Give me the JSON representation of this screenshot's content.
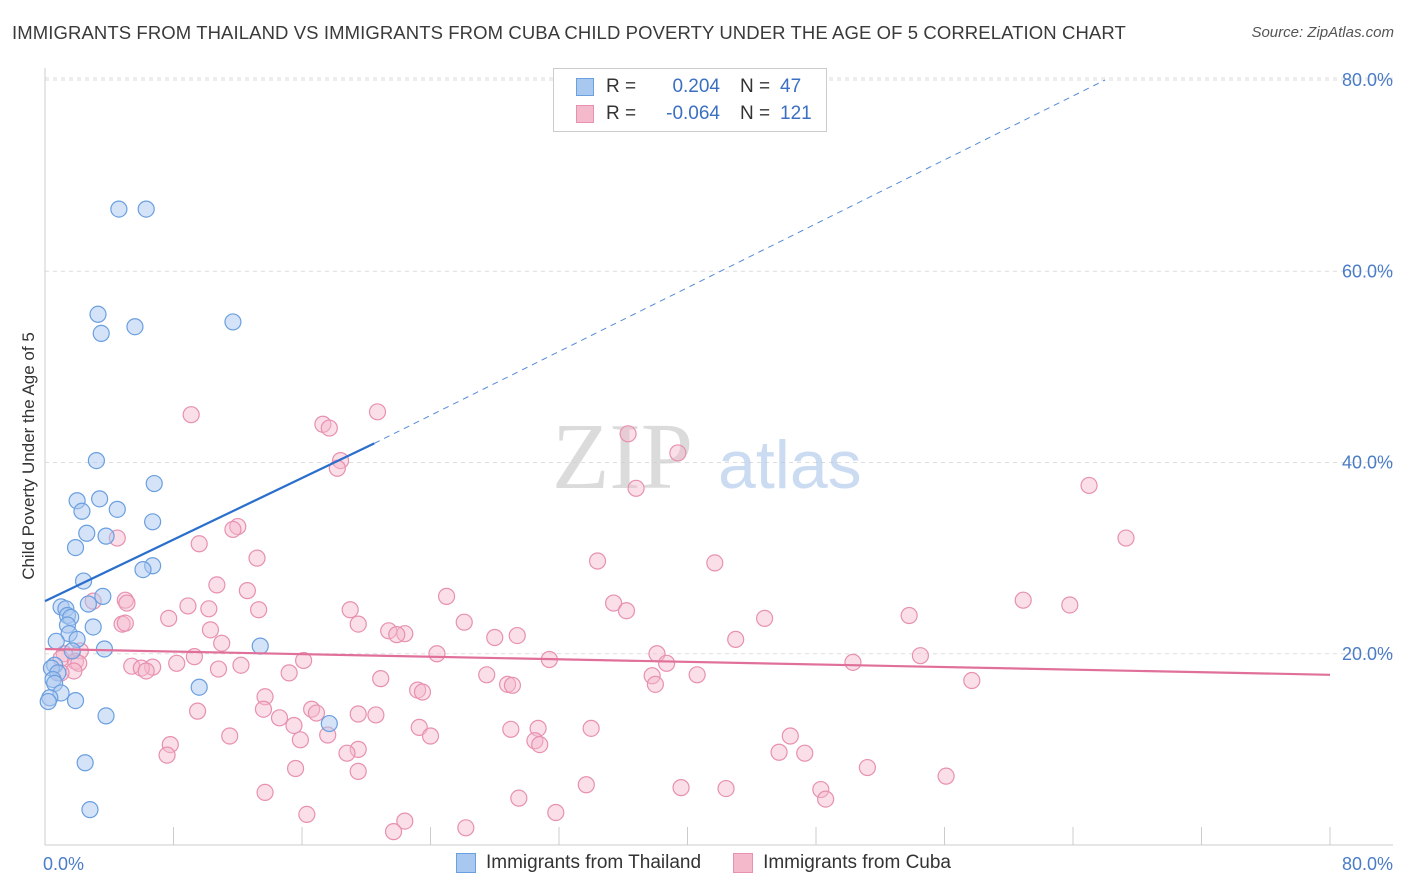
{
  "title": "IMMIGRANTS FROM THAILAND VS IMMIGRANTS FROM CUBA CHILD POVERTY UNDER THE AGE OF 5 CORRELATION CHART",
  "source": "Source: ZipAtlas.com",
  "watermark": {
    "zip": "ZIP",
    "atlas": "atlas"
  },
  "legend": {
    "rows": [
      {
        "r_label": "R =",
        "r_value": "0.204",
        "n_label": "N =",
        "n_value": "47"
      },
      {
        "r_label": "R =",
        "r_value": "-0.064",
        "n_label": "N =",
        "n_value": "121"
      }
    ]
  },
  "bottom_legend": {
    "thailand": "Immigrants from Thailand",
    "cuba": "Immigrants from Cuba"
  },
  "colors": {
    "thailand_fill": "#a9c8f0",
    "thailand_stroke": "#6a9fe0",
    "thailand_line": "#2a6fcc",
    "cuba_fill": "#f5b9cc",
    "cuba_stroke": "#e890b0",
    "cuba_line": "#e0709a",
    "tick": "#4a7cc7",
    "grid": "#dddddd"
  },
  "chart_data": {
    "type": "scatter",
    "ylabel": "Child Poverty Under the Age of 5",
    "xlim": [
      0,
      80
    ],
    "ylim": [
      0,
      80
    ],
    "x_tick_labels": [
      "0.0%",
      "80.0%"
    ],
    "y_ticks": [
      20,
      40,
      60,
      80
    ],
    "y_tick_labels": [
      "20.0%",
      "40.0%",
      "60.0%",
      "80.0%"
    ],
    "grid": "horizontal dashed",
    "series": [
      {
        "name": "Immigrants from Thailand",
        "R": 0.204,
        "N": 47,
        "trend": {
          "x0": 0,
          "y0": 25.5,
          "x1": 20.5,
          "y1": 42.0,
          "dash_to_x": 66,
          "dash_to_y": 80
        },
        "points": [
          [
            4.6,
            66.5
          ],
          [
            6.3,
            66.5
          ],
          [
            3.3,
            55.5
          ],
          [
            5.6,
            54.2
          ],
          [
            11.7,
            54.7
          ],
          [
            3.5,
            53.5
          ],
          [
            3.2,
            40.2
          ],
          [
            6.8,
            37.8
          ],
          [
            2.0,
            36.0
          ],
          [
            3.4,
            36.2
          ],
          [
            4.5,
            35.1
          ],
          [
            2.3,
            34.9
          ],
          [
            6.7,
            33.8
          ],
          [
            2.6,
            32.6
          ],
          [
            3.8,
            32.3
          ],
          [
            1.9,
            31.1
          ],
          [
            6.7,
            29.2
          ],
          [
            6.1,
            28.8
          ],
          [
            2.4,
            27.6
          ],
          [
            3.6,
            26.0
          ],
          [
            2.7,
            25.2
          ],
          [
            1.0,
            24.9
          ],
          [
            1.3,
            24.7
          ],
          [
            1.4,
            24.0
          ],
          [
            1.6,
            23.8
          ],
          [
            1.4,
            23.0
          ],
          [
            3.0,
            22.8
          ],
          [
            1.5,
            22.1
          ],
          [
            2.0,
            21.5
          ],
          [
            0.7,
            21.3
          ],
          [
            13.4,
            20.8
          ],
          [
            3.7,
            20.5
          ],
          [
            1.7,
            20.3
          ],
          [
            0.6,
            18.8
          ],
          [
            0.4,
            18.5
          ],
          [
            0.8,
            18.0
          ],
          [
            0.5,
            17.3
          ],
          [
            0.6,
            16.9
          ],
          [
            9.6,
            16.5
          ],
          [
            1.0,
            15.9
          ],
          [
            0.3,
            15.4
          ],
          [
            0.2,
            15.0
          ],
          [
            1.9,
            15.1
          ],
          [
            3.8,
            13.5
          ],
          [
            17.7,
            12.7
          ],
          [
            2.5,
            8.6
          ],
          [
            2.8,
            3.7
          ]
        ]
      },
      {
        "name": "Immigrants from Cuba",
        "R": -0.064,
        "N": 121,
        "trend": {
          "x0": 0,
          "y0": 20.5,
          "x1": 80,
          "y1": 17.8
        },
        "points": [
          [
            20.7,
            45.3
          ],
          [
            9.1,
            45.0
          ],
          [
            17.3,
            44.0
          ],
          [
            17.7,
            43.6
          ],
          [
            36.3,
            43.0
          ],
          [
            39.4,
            41.0
          ],
          [
            18.4,
            40.2
          ],
          [
            18.2,
            39.4
          ],
          [
            36.8,
            37.3
          ],
          [
            65.0,
            37.6
          ],
          [
            12.0,
            33.3
          ],
          [
            11.7,
            33.0
          ],
          [
            4.5,
            32.1
          ],
          [
            67.3,
            32.1
          ],
          [
            9.6,
            31.5
          ],
          [
            13.2,
            30.0
          ],
          [
            34.4,
            29.7
          ],
          [
            41.7,
            29.5
          ],
          [
            10.7,
            27.2
          ],
          [
            12.6,
            26.6
          ],
          [
            25.0,
            26.0
          ],
          [
            60.9,
            25.6
          ],
          [
            5.0,
            25.6
          ],
          [
            3.0,
            25.5
          ],
          [
            5.1,
            25.3
          ],
          [
            35.4,
            25.3
          ],
          [
            63.8,
            25.1
          ],
          [
            8.9,
            25.0
          ],
          [
            10.2,
            24.7
          ],
          [
            13.3,
            24.6
          ],
          [
            19.0,
            24.6
          ],
          [
            36.2,
            24.5
          ],
          [
            53.8,
            24.0
          ],
          [
            7.7,
            23.7
          ],
          [
            44.8,
            23.7
          ],
          [
            26.1,
            23.3
          ],
          [
            4.8,
            23.1
          ],
          [
            5.0,
            23.2
          ],
          [
            19.5,
            23.1
          ],
          [
            10.3,
            22.5
          ],
          [
            21.4,
            22.4
          ],
          [
            22.4,
            22.1
          ],
          [
            21.9,
            22.0
          ],
          [
            29.4,
            21.9
          ],
          [
            28.0,
            21.7
          ],
          [
            43.0,
            21.5
          ],
          [
            11.0,
            21.1
          ],
          [
            2.2,
            20.3
          ],
          [
            24.4,
            20.0
          ],
          [
            1.2,
            20.0
          ],
          [
            38.1,
            20.0
          ],
          [
            54.5,
            19.8
          ],
          [
            9.3,
            19.7
          ],
          [
            1.0,
            19.5
          ],
          [
            31.4,
            19.4
          ],
          [
            1.9,
            19.2
          ],
          [
            16.1,
            19.3
          ],
          [
            2.1,
            19.0
          ],
          [
            38.7,
            19.0
          ],
          [
            50.3,
            19.1
          ],
          [
            8.2,
            19.0
          ],
          [
            12.2,
            18.8
          ],
          [
            5.4,
            18.7
          ],
          [
            6.7,
            18.6
          ],
          [
            6.0,
            18.5
          ],
          [
            10.8,
            18.4
          ],
          [
            6.3,
            18.2
          ],
          [
            1.8,
            18.2
          ],
          [
            1.0,
            18.0
          ],
          [
            15.2,
            18.0
          ],
          [
            27.5,
            17.8
          ],
          [
            40.6,
            17.8
          ],
          [
            37.8,
            17.7
          ],
          [
            20.9,
            17.4
          ],
          [
            57.7,
            17.2
          ],
          [
            28.8,
            16.8
          ],
          [
            38.0,
            16.8
          ],
          [
            29.1,
            16.7
          ],
          [
            23.2,
            16.2
          ],
          [
            23.5,
            16.0
          ],
          [
            13.7,
            15.5
          ],
          [
            16.6,
            14.2
          ],
          [
            13.6,
            14.2
          ],
          [
            9.5,
            14.0
          ],
          [
            16.9,
            13.8
          ],
          [
            19.5,
            13.7
          ],
          [
            20.6,
            13.6
          ],
          [
            14.6,
            13.3
          ],
          [
            23.3,
            12.3
          ],
          [
            34.0,
            12.2
          ],
          [
            15.5,
            12.5
          ],
          [
            29.0,
            12.1
          ],
          [
            30.7,
            12.2
          ],
          [
            11.5,
            11.4
          ],
          [
            17.6,
            11.5
          ],
          [
            24.0,
            11.4
          ],
          [
            46.4,
            11.4
          ],
          [
            15.9,
            11.0
          ],
          [
            30.5,
            10.9
          ],
          [
            30.8,
            10.5
          ],
          [
            7.8,
            10.5
          ],
          [
            19.5,
            10.0
          ],
          [
            18.8,
            9.6
          ],
          [
            47.3,
            9.6
          ],
          [
            7.6,
            9.4
          ],
          [
            45.7,
            9.7
          ],
          [
            15.6,
            8.0
          ],
          [
            51.2,
            8.1
          ],
          [
            56.1,
            7.2
          ],
          [
            19.5,
            7.7
          ],
          [
            33.7,
            6.3
          ],
          [
            39.6,
            6.0
          ],
          [
            42.4,
            5.9
          ],
          [
            48.3,
            5.8
          ],
          [
            13.7,
            5.5
          ],
          [
            29.5,
            4.9
          ],
          [
            48.6,
            4.8
          ],
          [
            31.8,
            3.4
          ],
          [
            16.3,
            3.2
          ],
          [
            22.4,
            2.5
          ],
          [
            26.2,
            1.8
          ],
          [
            21.7,
            1.4
          ]
        ]
      }
    ]
  }
}
